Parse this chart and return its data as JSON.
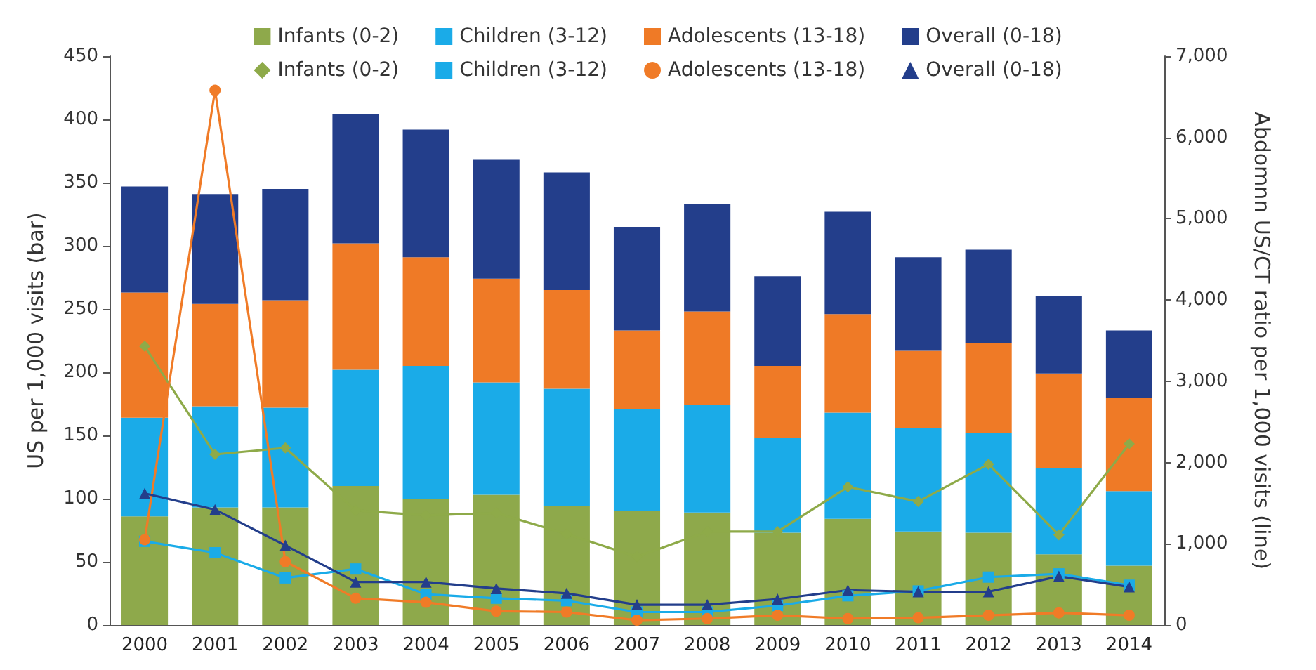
{
  "chart_data": {
    "type": "bar",
    "ylabel": "US per 1,000 visits (bar)",
    "y2label": "Abdomnn US/CT ratio per 1,000 visits (line)",
    "categories": [
      "2000",
      "2001",
      "2002",
      "2003",
      "2004",
      "2005",
      "2006",
      "2007",
      "2008",
      "2009",
      "2010",
      "2011",
      "2012",
      "2013",
      "2014"
    ],
    "stacked": true,
    "grid": false,
    "legend": "top",
    "ylim": [
      0,
      450
    ],
    "yticks": [
      0,
      50,
      100,
      150,
      200,
      250,
      300,
      350,
      400,
      450
    ],
    "y2lim": [
      0,
      7000
    ],
    "y2ticks": [
      0,
      {
        "value": 1000,
        "label": "1,000"
      },
      {
        "value": 2000,
        "label": "2,000"
      },
      {
        "value": 3000,
        "label": "3,000"
      },
      {
        "value": 4000,
        "label": "4,000"
      },
      {
        "value": 5000,
        "label": "5,000"
      },
      {
        "value": 6000,
        "label": "6,000"
      },
      {
        "value": 7000,
        "label": "7,000"
      }
    ],
    "series": [
      {
        "name": "Infants (0-2)",
        "color": "#8ea94b",
        "values": [
          86,
          93,
          93,
          110,
          100,
          103,
          94,
          90,
          89,
          73,
          84,
          74,
          73,
          56,
          47
        ]
      },
      {
        "name": "Children (3-12)",
        "color": "#1aabe8",
        "values": [
          78,
          80,
          79,
          92,
          105,
          89,
          93,
          81,
          85,
          75,
          84,
          82,
          79,
          68,
          59
        ]
      },
      {
        "name": "Adolescents (13-18)",
        "color": "#ef7a26",
        "values": [
          99,
          81,
          85,
          100,
          86,
          82,
          78,
          62,
          74,
          57,
          78,
          61,
          71,
          75,
          74
        ]
      },
      {
        "name": "Overall (0-18)",
        "color": "#233e8b",
        "values": [
          84,
          87,
          88,
          102,
          101,
          94,
          93,
          82,
          85,
          71,
          81,
          74,
          74,
          61,
          53
        ]
      },
      {
        "type": "line",
        "axis": "y2",
        "marker": "diamond",
        "name": "Infants (0-2)",
        "color": "#8eaa49",
        "values": [
          3430,
          2100,
          2180,
          1410,
          1350,
          1380,
          1120,
          840,
          1150,
          1150,
          1700,
          1520,
          1980,
          1110,
          2230
        ]
      },
      {
        "type": "line",
        "axis": "y2",
        "marker": "square",
        "name": "Children (3-12)",
        "color": "#1aabe8",
        "values": [
          1030,
          890,
          580,
          690,
          380,
          330,
          300,
          160,
          160,
          240,
          360,
          420,
          590,
          630,
          490
        ]
      },
      {
        "type": "line",
        "axis": "y2",
        "marker": "circle",
        "name": "Adolescents (13-18)",
        "color": "#f07b27",
        "values": [
          1050,
          6580,
          780,
          330,
          280,
          170,
          160,
          60,
          80,
          120,
          80,
          90,
          120,
          150,
          120
        ]
      },
      {
        "type": "line",
        "axis": "y2",
        "marker": "triangle",
        "name": "Overall (0-18)",
        "color": "#233e8b",
        "values": [
          1620,
          1420,
          980,
          530,
          530,
          450,
          390,
          250,
          250,
          320,
          430,
          410,
          410,
          600,
          470
        ]
      }
    ]
  }
}
